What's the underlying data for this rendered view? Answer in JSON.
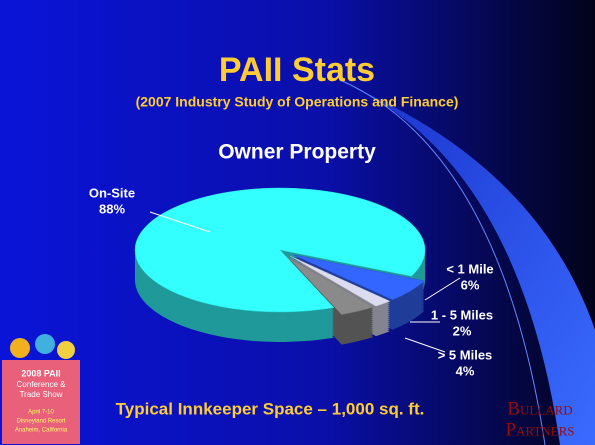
{
  "chart_data": {
    "type": "pie",
    "title": "PAII Stats",
    "subtitle": "(2007 Industry Study of Operations and Finance)",
    "chart_title": "Owner Property",
    "categories": [
      "On-Site",
      "< 1 Mile",
      "1 - 5 Miles",
      "> 5 Miles"
    ],
    "values": [
      88,
      6,
      2,
      4
    ],
    "value_labels": [
      "88%",
      "6%",
      "2%",
      "4%"
    ],
    "colors": [
      "#33ffff",
      "#3366ff",
      "#dcdcf0",
      "#8a8a8a"
    ]
  },
  "footer": "Typical Innkeeper Space – 1,000 sq. ft.",
  "brand": [
    "Bullard",
    "Partners"
  ],
  "logo": [
    "2008 PAII",
    "Conference &",
    "Trade Show",
    "April 7-10",
    "Disneyland Resort",
    "Anaheim, California"
  ]
}
